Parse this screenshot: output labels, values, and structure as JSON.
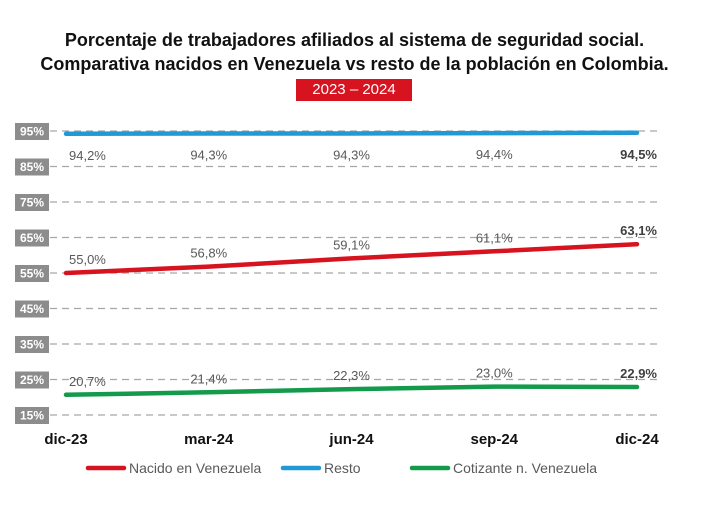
{
  "chart_data": {
    "type": "line",
    "title": "Porcentaje de trabajadores afiliados al sistema de seguridad social.",
    "title_line2": "Comparativa nacidos en Venezuela vs resto de la población en Colombia.",
    "subtitle": "2023 – 2024",
    "categories": [
      "dic-23",
      "mar-24",
      "jun-24",
      "sep-24",
      "dic-24"
    ],
    "y_ticks": [
      15,
      25,
      35,
      45,
      55,
      65,
      75,
      85,
      95
    ],
    "y_tick_labels": [
      "15%",
      "25%",
      "35%",
      "45%",
      "55%",
      "65%",
      "75%",
      "85%",
      "95%"
    ],
    "ylim": [
      15,
      95
    ],
    "grid": true,
    "legend_position": "bottom",
    "series": [
      {
        "name": "Nacido en Venezuela",
        "color": "#d6131f",
        "values": [
          55.0,
          56.8,
          59.1,
          61.1,
          63.1
        ],
        "labels": [
          "55,0%",
          "56,8%",
          "59,1%",
          "61,1%",
          "63,1%"
        ]
      },
      {
        "name": "Resto",
        "color": "#1f9ad6",
        "values": [
          94.2,
          94.3,
          94.3,
          94.4,
          94.5
        ],
        "labels": [
          "94,2%",
          "94,3%",
          "94,3%",
          "94,4%",
          "94,5%"
        ]
      },
      {
        "name": "Cotizante n. Venezuela",
        "color": "#139a4a",
        "values": [
          20.7,
          21.4,
          22.3,
          23.0,
          22.9
        ],
        "labels": [
          "20,7%",
          "21,4%",
          "22,3%",
          "23,0%",
          "22,9%"
        ]
      }
    ]
  }
}
